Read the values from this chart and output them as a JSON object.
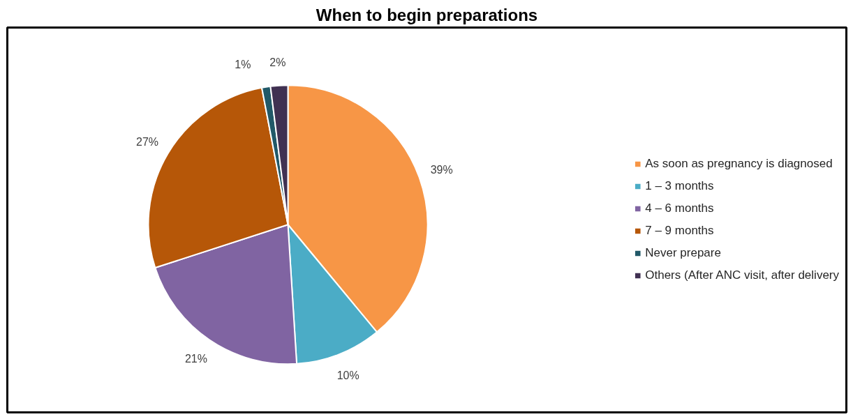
{
  "chart_data": {
    "type": "pie",
    "title": "When to begin preparations",
    "categories": [
      "As soon as pregnancy is diagnosed",
      "1 – 3 months",
      "4 – 6 months",
      "7 – 9 months",
      "Never prepare",
      "Others (After ANC visit, after delivery"
    ],
    "values": [
      39,
      10,
      21,
      27,
      1,
      2
    ],
    "colors": [
      "#f79646",
      "#4bacc6",
      "#8064a2",
      "#b65708",
      "#215968",
      "#403152"
    ],
    "value_labels": [
      "39%",
      "10%",
      "21%",
      "27%",
      "1%",
      "2%"
    ],
    "legend": "right"
  }
}
